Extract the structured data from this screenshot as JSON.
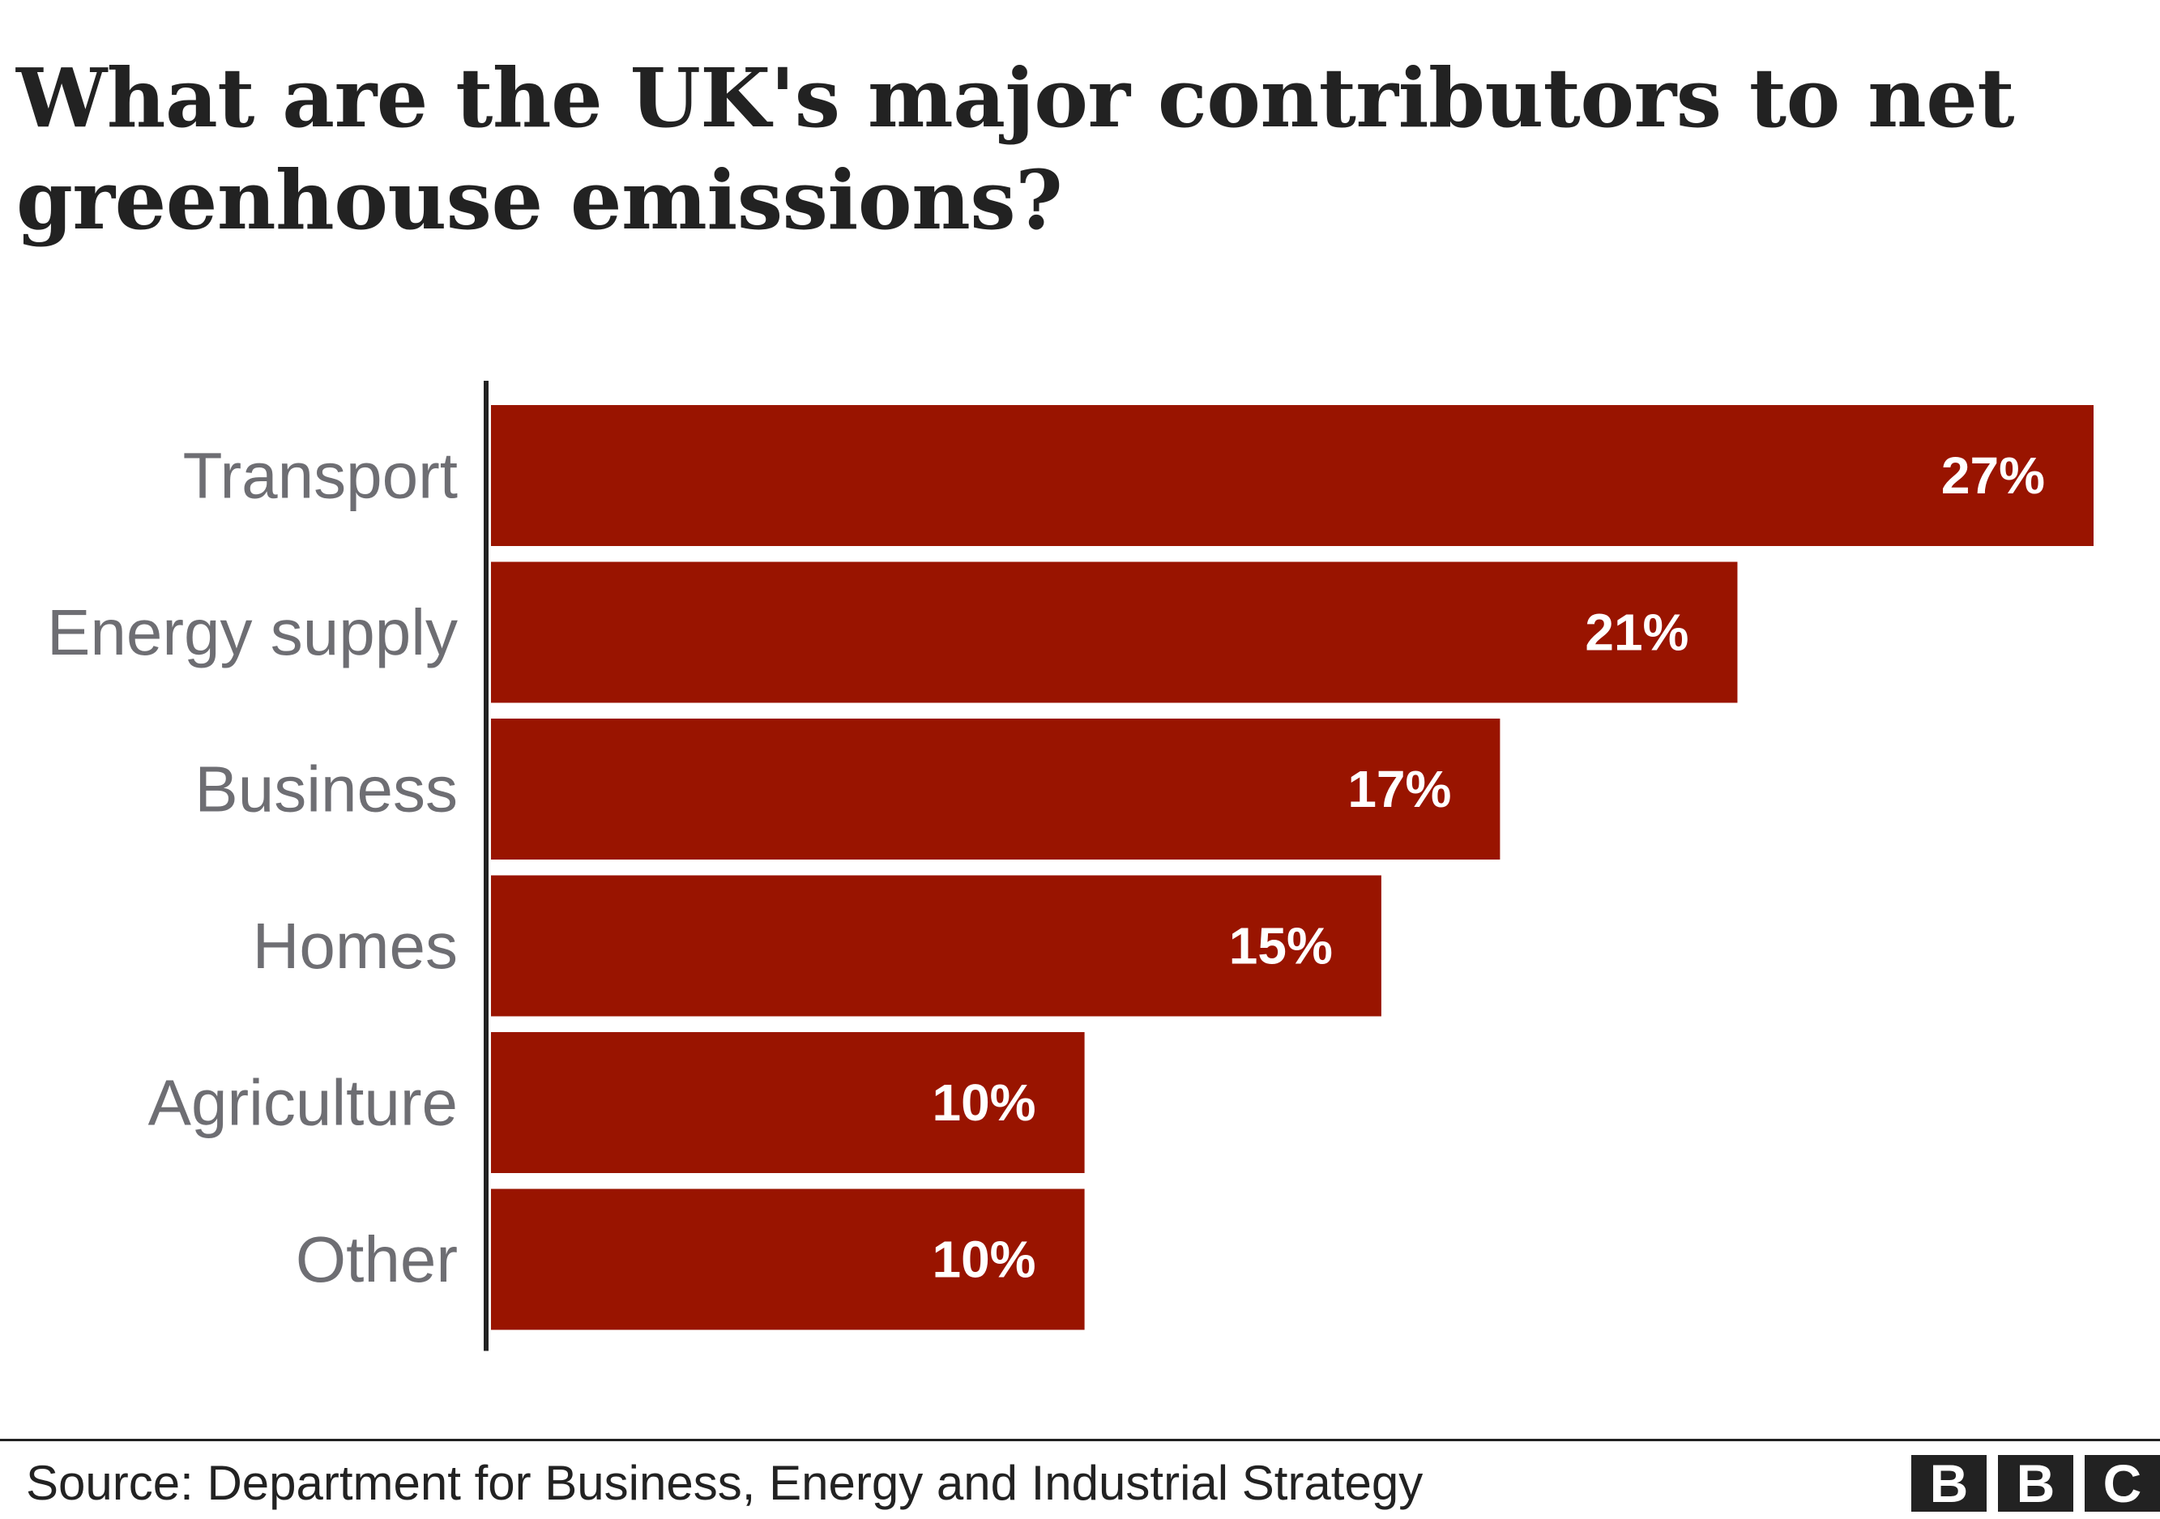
{
  "title": "What are the UK's major contributors to net greenhouse emissions?",
  "source": "Source: Department for Business, Energy and Industrial Strategy",
  "logo": [
    "B",
    "B",
    "C"
  ],
  "colors": {
    "bar": "#991400",
    "category_label": "#6e6e73",
    "value_label": "#ffffff",
    "axis": "#222222"
  },
  "chart_data": {
    "type": "bar",
    "orientation": "horizontal",
    "categories": [
      "Transport",
      "Energy supply",
      "Business",
      "Homes",
      "Agriculture",
      "Other"
    ],
    "values": [
      27,
      21,
      17,
      15,
      10,
      10
    ],
    "value_labels": [
      "27%",
      "21%",
      "17%",
      "15%",
      "10%",
      "10%"
    ],
    "title": "What are the UK's major contributors to net greenhouse emissions?",
    "xlabel": "",
    "ylabel": "",
    "xlim": [
      0,
      27
    ],
    "grid": false,
    "legend": "none"
  }
}
